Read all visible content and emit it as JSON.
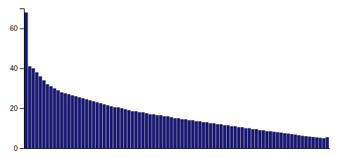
{
  "chart_data": {
    "type": "bar",
    "color": "#191970",
    "values": [
      68,
      41,
      40,
      38,
      36,
      34,
      32,
      31,
      30,
      29,
      28,
      27.5,
      27,
      26.5,
      26,
      25.5,
      25,
      24.5,
      24,
      23.5,
      23,
      22.5,
      22,
      21.5,
      21,
      20.5,
      20.5,
      20,
      19.5,
      19,
      18.5,
      18.5,
      18,
      18,
      17.5,
      17,
      17,
      16.5,
      16.5,
      16,
      16,
      15.5,
      15,
      15,
      14.5,
      14.5,
      14,
      14,
      13.5,
      13.5,
      13,
      13,
      12.5,
      12.5,
      12,
      12,
      11.5,
      11.5,
      11,
      11,
      10.5,
      10.5,
      10,
      10,
      9.5,
      9.5,
      9,
      9,
      8.5,
      8.5,
      8.2,
      8,
      7.8,
      7.5,
      7.3,
      7,
      6.8,
      6.5,
      6.2,
      6,
      5.8,
      5.6,
      5.4,
      5.2,
      5,
      5.5
    ],
    "ylim": [
      0,
      70
    ],
    "yticks": [
      0,
      20,
      40,
      60
    ],
    "grid": false,
    "tick_labels": "y"
  }
}
